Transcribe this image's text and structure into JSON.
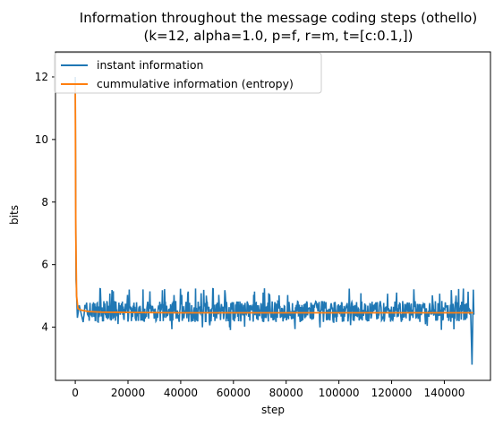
{
  "chart_data": {
    "type": "line",
    "title_line1": "Information throughout the message coding steps (othello)",
    "title_line2": "(k=12, alpha=1.0, p=f, r=m, t=[c:0.1,])",
    "xlabel": "step",
    "ylabel": "bits",
    "xlim": [
      -7500,
      157500
    ],
    "ylim": [
      2.3,
      12.8
    ],
    "xticks": [
      0,
      20000,
      40000,
      60000,
      80000,
      100000,
      120000,
      140000
    ],
    "xtick_labels": [
      "0",
      "20000",
      "40000",
      "60000",
      "80000",
      "100000",
      "120000",
      "140000"
    ],
    "yticks": [
      4,
      6,
      8,
      10,
      12
    ],
    "ytick_labels": [
      "4",
      "6",
      "8",
      "10",
      "12"
    ],
    "grid": false,
    "legend_position": "top-left",
    "series": [
      {
        "name": "instant information",
        "color": "#1f77b4",
        "description_points": {
          "x": [
            0,
            300,
            800,
            1500,
            3000,
            20000,
            60000,
            90000,
            120000,
            150000,
            150500,
            151000,
            151200
          ],
          "y": [
            12.0,
            5.5,
            4.3,
            4.7,
            4.4,
            4.45,
            4.5,
            4.45,
            4.5,
            4.4,
            2.8,
            5.2,
            4.4
          ]
        },
        "noise_band": [
          4.1,
          5.0
        ]
      },
      {
        "name": "cummulative information (entropy)",
        "color": "#ff7f0e",
        "x": [
          0,
          200,
          500,
          1000,
          2000,
          5000,
          10000,
          20000,
          40000,
          60000,
          80000,
          100000,
          120000,
          140000,
          151000
        ],
        "y": [
          11.8,
          7.0,
          5.0,
          4.6,
          4.55,
          4.5,
          4.48,
          4.47,
          4.46,
          4.46,
          4.46,
          4.46,
          4.46,
          4.46,
          4.46
        ]
      }
    ]
  }
}
